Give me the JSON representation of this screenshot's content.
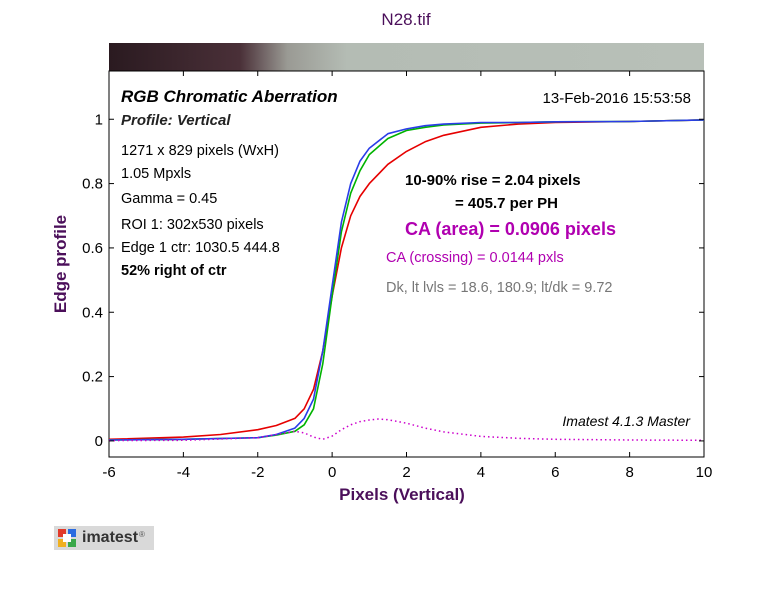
{
  "colors": {
    "axis_title": "#4b0f5a",
    "title": "#4b0f5a",
    "red": "#e60000",
    "green": "#00b300",
    "blue": "#2a3de8",
    "ca_text": "#b000b0",
    "crossing_text": "#b000b0",
    "stats_text": "#777777",
    "diff_curve": "#cc00cc"
  },
  "logo": {
    "icon": "imatest-logo-icon",
    "text": "imatest",
    "reg": "®"
  },
  "chart_data": {
    "type": "line",
    "title": "N28.tif",
    "xlabel": "Pixels (Vertical)",
    "ylabel": "Edge profile",
    "xlim": [
      -6,
      10
    ],
    "ylim": [
      -0.05,
      1.15
    ],
    "xticks": [
      -6,
      -4,
      -2,
      0,
      2,
      4,
      6,
      8,
      10
    ],
    "yticks": [
      0,
      0.2,
      0.4,
      0.6,
      0.8,
      1
    ],
    "ytick_labels": [
      "0",
      "0.2",
      "0.4",
      "0.6",
      "0.8",
      "1"
    ],
    "grid": false,
    "edge_strip": {
      "dark_level": 18.6,
      "light_level": 180.9
    },
    "series": [
      {
        "color": "red",
        "x": [
          -6,
          -4,
          -3,
          -2,
          -1.5,
          -1,
          -0.75,
          -0.5,
          -0.25,
          0,
          0.25,
          0.5,
          0.75,
          1,
          1.5,
          2,
          2.5,
          3,
          4,
          5,
          6,
          8,
          10
        ],
        "y": [
          0.005,
          0.012,
          0.02,
          0.035,
          0.048,
          0.07,
          0.1,
          0.16,
          0.28,
          0.45,
          0.6,
          0.7,
          0.76,
          0.8,
          0.86,
          0.9,
          0.93,
          0.95,
          0.975,
          0.985,
          0.99,
          0.993,
          0.998
        ]
      },
      {
        "color": "green",
        "x": [
          -6,
          -4,
          -2,
          -1.5,
          -1,
          -0.75,
          -0.5,
          -0.25,
          0,
          0.25,
          0.5,
          0.75,
          1,
          1.5,
          2,
          2.5,
          3,
          4,
          5,
          6,
          8,
          10
        ],
        "y": [
          0.003,
          0.005,
          0.01,
          0.018,
          0.03,
          0.05,
          0.1,
          0.24,
          0.45,
          0.65,
          0.77,
          0.84,
          0.89,
          0.94,
          0.965,
          0.975,
          0.982,
          0.988,
          0.99,
          0.992,
          0.993,
          0.998
        ]
      },
      {
        "color": "blue",
        "x": [
          -6,
          -4,
          -2,
          -1.5,
          -1,
          -0.75,
          -0.5,
          -0.25,
          0,
          0.25,
          0.5,
          0.75,
          1,
          1.5,
          2,
          2.5,
          3,
          4,
          5,
          6,
          8,
          10
        ],
        "y": [
          0.003,
          0.005,
          0.01,
          0.02,
          0.04,
          0.07,
          0.13,
          0.28,
          0.48,
          0.68,
          0.8,
          0.87,
          0.91,
          0.955,
          0.97,
          0.98,
          0.985,
          0.99,
          0.99,
          0.992,
          0.993,
          0.998
        ]
      },
      {
        "color": "diff_curve",
        "style": "dotted",
        "x": [
          -6,
          -4,
          -2,
          -1.5,
          -1,
          -0.75,
          -0.5,
          -0.25,
          0,
          0.25,
          0.5,
          0.75,
          1,
          1.25,
          1.5,
          2,
          2.5,
          3,
          4,
          5,
          6,
          8,
          10
        ],
        "y": [
          0.001,
          0.002,
          0.01,
          0.02,
          0.03,
          0.025,
          0.012,
          0.005,
          0.015,
          0.035,
          0.05,
          0.06,
          0.065,
          0.068,
          0.066,
          0.055,
          0.04,
          0.028,
          0.014,
          0.008,
          0.005,
          0.003,
          0.002
        ]
      }
    ],
    "annotations": {
      "header_left": "RGB Chromatic Aberration",
      "header_right": "13-Feb-2016 15:53:58",
      "profile": "Profile: Vertical",
      "info": [
        "1271 x 829 pixels (WxH)",
        "1.05 Mpxls",
        "Gamma = 0.45",
        "ROI 1: 302x530 pixels",
        "Edge 1 ctr: 1030.5  444.8",
        "52% right of ctr"
      ],
      "rise_1": "10-90% rise = 2.04 pixels",
      "rise_2": "= 405.7 per PH",
      "ca_area": "CA (area) = 0.0906 pixels",
      "ca_crossing": "CA (crossing) = 0.0144 pxls",
      "levels": "Dk, lt lvls = 18.6, 180.9;  lt/dk = 9.72",
      "version": "Imatest 4.1.3  Master"
    }
  }
}
